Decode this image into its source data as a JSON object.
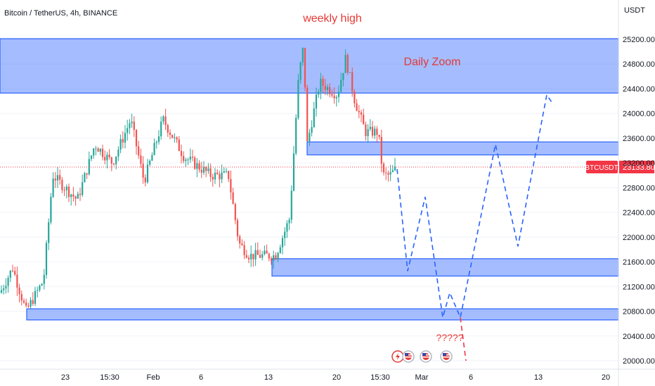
{
  "header": {
    "symbol_line": "Bitcoin / TetherUS, 4h, BINANCE",
    "currency": "USDT"
  },
  "colors": {
    "up": "#26a69a",
    "down": "#ef5350",
    "zone_fill": "#2962ff",
    "zone_stroke": "#2962ff",
    "projection": "#2962ff",
    "price_tag": "#f23645",
    "annotation": "#e53935",
    "grid": "#f0f3fa"
  },
  "chart_data": {
    "type": "candlestick",
    "title": "Bitcoin / TetherUS, 4h, BINANCE",
    "y_unit": "USDT",
    "ylim": [
      19900,
      25400
    ],
    "y_ticks": [
      20000,
      20400,
      20800,
      21200,
      21600,
      22000,
      22400,
      22800,
      23200,
      23600,
      24000,
      24400,
      24800,
      25200
    ],
    "y_tick_labels": [
      "20000.00",
      "20400.00",
      "20800.00",
      "21200.00",
      "21600.00",
      "22000.00",
      "22400.00",
      "22800.00",
      "23200.00",
      "23600.00",
      "24000.00",
      "24400.00",
      "24800.00",
      "25200.00"
    ],
    "x_labels": [
      "23",
      "15:30",
      "Feb",
      "6",
      "13",
      "20",
      "15:30",
      "Mar",
      "6",
      "13",
      "20"
    ],
    "current_price": {
      "symbol": "BTCUSDT",
      "value": 23133.8,
      "label": "23133.80"
    },
    "ohlc_anchor_path": [
      {
        "x": 0,
        "y": 21100
      },
      {
        "x": 18,
        "y": 21500
      },
      {
        "x": 37,
        "y": 20800
      },
      {
        "x": 62,
        "y": 21300
      },
      {
        "x": 75,
        "y": 23000
      },
      {
        "x": 110,
        "y": 22600
      },
      {
        "x": 135,
        "y": 23500
      },
      {
        "x": 160,
        "y": 23200
      },
      {
        "x": 186,
        "y": 23900
      },
      {
        "x": 205,
        "y": 22900
      },
      {
        "x": 232,
        "y": 23900
      },
      {
        "x": 262,
        "y": 23300
      },
      {
        "x": 300,
        "y": 23000
      },
      {
        "x": 325,
        "y": 23000
      },
      {
        "x": 340,
        "y": 21900
      },
      {
        "x": 355,
        "y": 21700
      },
      {
        "x": 392,
        "y": 21700
      },
      {
        "x": 412,
        "y": 22300
      },
      {
        "x": 425,
        "y": 24600
      },
      {
        "x": 432,
        "y": 25100
      },
      {
        "x": 437,
        "y": 23500
      },
      {
        "x": 455,
        "y": 24500
      },
      {
        "x": 480,
        "y": 24300
      },
      {
        "x": 492,
        "y": 24900
      },
      {
        "x": 505,
        "y": 24200
      },
      {
        "x": 520,
        "y": 23700
      },
      {
        "x": 538,
        "y": 23700
      },
      {
        "x": 545,
        "y": 23000
      },
      {
        "x": 555,
        "y": 23000
      },
      {
        "x": 565,
        "y": 23130
      }
    ],
    "zones": [
      {
        "name": "Daily Zoom",
        "from_x": 0,
        "to_x": 880,
        "low": 24330,
        "high": 25210
      },
      {
        "name": "",
        "from_x": 437,
        "to_x": 880,
        "low": 23330,
        "high": 23540
      },
      {
        "name": "",
        "from_x": 387,
        "to_x": 880,
        "low": 21370,
        "high": 21650
      },
      {
        "name": "",
        "from_x": 38,
        "to_x": 880,
        "low": 20660,
        "high": 20840
      }
    ],
    "projection_path": [
      {
        "x": 565,
        "y": 23100
      },
      {
        "x": 580,
        "y": 21450
      },
      {
        "x": 605,
        "y": 22650
      },
      {
        "x": 630,
        "y": 20700
      },
      {
        "x": 640,
        "y": 21100
      },
      {
        "x": 655,
        "y": 20700
      },
      {
        "x": 705,
        "y": 23500
      },
      {
        "x": 737,
        "y": 21850
      },
      {
        "x": 778,
        "y": 24300
      },
      {
        "x": 787,
        "y": 24150
      }
    ],
    "projection_branch": [
      {
        "x": 655,
        "y": 20700
      },
      {
        "x": 663,
        "y": 20000
      }
    ],
    "annotations": [
      {
        "text": "weekly high",
        "x": 473,
        "y": 25450
      },
      {
        "text": "Daily Zoom",
        "x": 615,
        "y": 24780
      },
      {
        "text": "?????",
        "x": 640,
        "y": 20320
      }
    ],
    "event_icons": [
      {
        "kind": "lightning-icon",
        "x": 566
      },
      {
        "kind": "us-flag-icon",
        "x": 581
      },
      {
        "kind": "us-flag-icon",
        "x": 606
      },
      {
        "kind": "us-flag-icon",
        "x": 635
      }
    ]
  }
}
